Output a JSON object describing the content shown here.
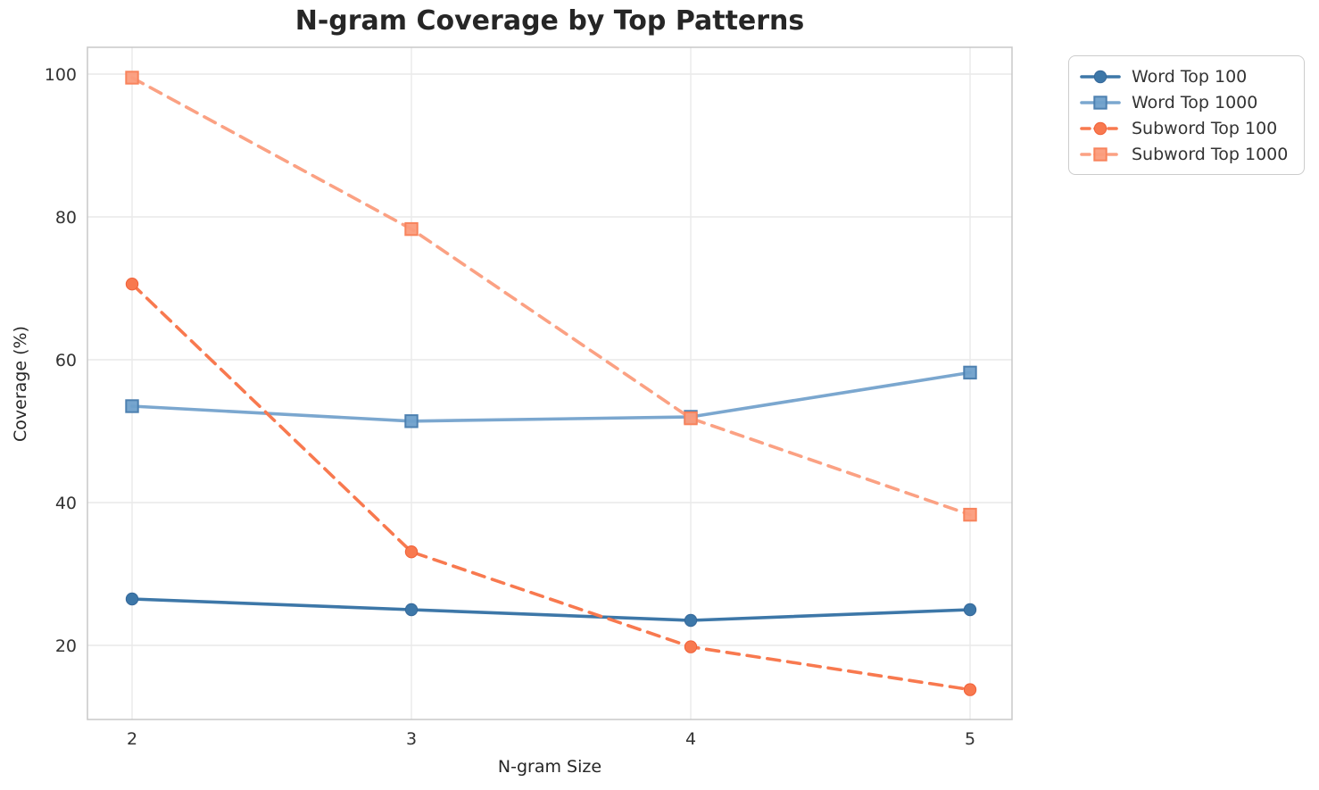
{
  "title": "N-gram Coverage by Top Patterns",
  "chart_data": {
    "type": "line",
    "title": "N-gram Coverage by Top Patterns",
    "xlabel": "N-gram Size",
    "ylabel": "Coverage (%)",
    "x": [
      2,
      3,
      4,
      5
    ],
    "x_ticks": [
      "2",
      "3",
      "4",
      "5"
    ],
    "y_ticks": [
      "20",
      "40",
      "60",
      "80",
      "100"
    ],
    "y_tick_values": [
      20,
      40,
      60,
      80,
      100
    ],
    "xlim": [
      1.84,
      5.15
    ],
    "ylim": [
      9.6,
      103.8
    ],
    "grid": true,
    "legend_position": "outside-upper-right",
    "series": [
      {
        "name": "Word Top 100",
        "values": [
          26.5,
          25.0,
          23.5,
          25.0
        ],
        "color": "#3d77a8",
        "marker_fill": "#3d77a8",
        "marker_edge": "#35689a",
        "style": "solid",
        "marker": "circle"
      },
      {
        "name": "Word Top 1000",
        "values": [
          53.5,
          51.4,
          52.0,
          58.2
        ],
        "color": "#7ba7cf",
        "marker_fill": "#6fa0cb",
        "marker_edge": "#4d80b0",
        "style": "solid",
        "marker": "square"
      },
      {
        "name": "Subword Top 100",
        "values": [
          70.6,
          33.1,
          19.8,
          13.8
        ],
        "color": "#f8794f",
        "marker_fill": "#f8794f",
        "marker_edge": "#f06038",
        "style": "dashed",
        "marker": "circle"
      },
      {
        "name": "Subword Top 1000",
        "values": [
          99.5,
          78.3,
          51.8,
          38.3
        ],
        "color": "#fba183",
        "marker_fill": "#fb9c7c",
        "marker_edge": "#f8835c",
        "style": "dashed",
        "marker": "square"
      }
    ],
    "colors": {
      "grid": "#e9e9e9",
      "spine": "#cbcbcb",
      "tick_text": "#333333",
      "title_text": "#262626"
    }
  }
}
